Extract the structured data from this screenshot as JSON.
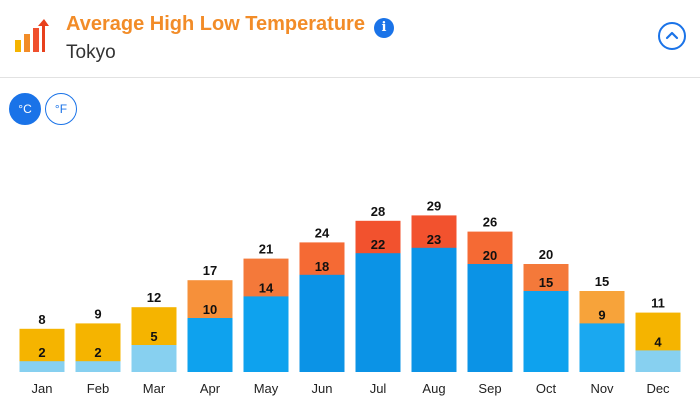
{
  "header": {
    "title": "Average High Low Temperature",
    "subtitle": "Tokyo",
    "info_icon": "info-icon",
    "logo_icon": "bar-chart-arrow-icon",
    "collapse_icon": "chevron-up-icon"
  },
  "units": {
    "celsius_label": "°C",
    "fahrenheit_label": "°F",
    "selected": "°C"
  },
  "colors": {
    "accent": "#1a73e8",
    "title": "#f28c28"
  },
  "chart_data": {
    "type": "bar",
    "categories": [
      "Jan",
      "Feb",
      "Mar",
      "Apr",
      "May",
      "Jun",
      "Jul",
      "Aug",
      "Sep",
      "Oct",
      "Nov",
      "Dec"
    ],
    "series": [
      {
        "values": [
          8,
          9,
          12,
          17,
          21,
          24,
          28,
          29,
          26,
          20,
          15,
          11
        ]
      },
      {
        "values": [
          2,
          2,
          5,
          10,
          14,
          18,
          22,
          23,
          20,
          15,
          9,
          4
        ]
      }
    ],
    "unit": "°C",
    "ylim": [
      0,
      30
    ],
    "grid": false
  }
}
